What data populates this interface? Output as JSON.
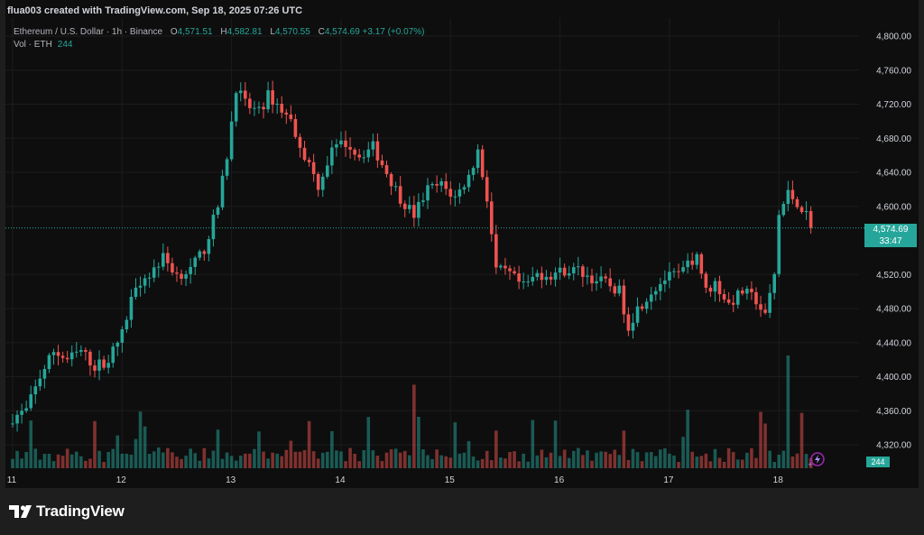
{
  "header": {
    "credit": "flua003 created with TradingView.com, Sep 18, 2025 07:26 UTC"
  },
  "legend": {
    "symbol": "Ethereum / U.S. Dollar · 1h · Binance",
    "open_label": "O",
    "open": "4,571.51",
    "high_label": "H",
    "high": "4,582.81",
    "low_label": "L",
    "low": "4,570.55",
    "close_label": "C",
    "close": "4,574.69",
    "change": "+3.17 (+0.07%)",
    "vol_label": "Vol · ETH",
    "vol": "244"
  },
  "price_tag": {
    "price": "4,574.69",
    "countdown": "33:47"
  },
  "volume_tag": "244",
  "brand": {
    "name": "TradingView"
  },
  "colors": {
    "background": "#0e0e0e",
    "up": "#26a69a",
    "down": "#ef5350",
    "grid": "#1c1c1c",
    "axis_text": "#d1d4dc"
  },
  "chart_data": {
    "type": "candlestick",
    "symbol": "ETH/USD",
    "interval": "1h",
    "exchange": "Binance",
    "y_ticks": [
      4320,
      4360,
      4400,
      4440,
      4480,
      4520,
      4600,
      4640,
      4680,
      4720,
      4760,
      4800
    ],
    "y_tick_labels": [
      "4,320.00",
      "4,360.00",
      "4,400.00",
      "4,440.00",
      "4,480.00",
      "4,520.00",
      "4,600.00",
      "4,640.00",
      "4,680.00",
      "4,720.00",
      "4,760.00",
      "4,800.00"
    ],
    "ylim": [
      4290,
      4820
    ],
    "x_labels": [
      "11",
      "12",
      "13",
      "14",
      "15",
      "16",
      "17",
      "18"
    ],
    "x_label_candle_index": [
      0,
      24,
      48,
      72,
      96,
      120,
      144,
      168
    ],
    "current_price": 4574.69,
    "grid": true,
    "volume_scale_max": 2700,
    "close_path": [
      [
        0,
        4352
      ],
      [
        3,
        4360
      ],
      [
        6,
        4400
      ],
      [
        9,
        4430
      ],
      [
        12,
        4420
      ],
      [
        15,
        4430
      ],
      [
        18,
        4412
      ],
      [
        21,
        4420
      ],
      [
        24,
        4450
      ],
      [
        27,
        4510
      ],
      [
        30,
        4520
      ],
      [
        33,
        4540
      ],
      [
        36,
        4520
      ],
      [
        39,
        4525
      ],
      [
        42,
        4550
      ],
      [
        45,
        4600
      ],
      [
        47,
        4660
      ],
      [
        49,
        4740
      ],
      [
        51,
        4720
      ],
      [
        54,
        4710
      ],
      [
        56,
        4730
      ],
      [
        58,
        4720
      ],
      [
        61,
        4700
      ],
      [
        64,
        4660
      ],
      [
        67,
        4625
      ],
      [
        70,
        4665
      ],
      [
        73,
        4675
      ],
      [
        76,
        4660
      ],
      [
        79,
        4670
      ],
      [
        82,
        4640
      ],
      [
        85,
        4610
      ],
      [
        88,
        4590
      ],
      [
        91,
        4620
      ],
      [
        94,
        4625
      ],
      [
        97,
        4610
      ],
      [
        100,
        4635
      ],
      [
        102,
        4665
      ],
      [
        104,
        4610
      ],
      [
        106,
        4525
      ],
      [
        109,
        4520
      ],
      [
        112,
        4505
      ],
      [
        115,
        4520
      ],
      [
        118,
        4520
      ],
      [
        121,
        4525
      ],
      [
        124,
        4525
      ],
      [
        127,
        4515
      ],
      [
        130,
        4510
      ],
      [
        133,
        4500
      ],
      [
        135,
        4460
      ],
      [
        137,
        4480
      ],
      [
        140,
        4500
      ],
      [
        143,
        4515
      ],
      [
        146,
        4520
      ],
      [
        148,
        4530
      ],
      [
        150,
        4545
      ],
      [
        152,
        4500
      ],
      [
        154,
        4510
      ],
      [
        157,
        4485
      ],
      [
        160,
        4500
      ],
      [
        163,
        4490
      ],
      [
        165,
        4470
      ],
      [
        167,
        4520
      ],
      [
        168,
        4590
      ],
      [
        170,
        4615
      ],
      [
        172,
        4605
      ],
      [
        174,
        4590
      ],
      [
        175,
        4575
      ]
    ],
    "candles": []
  }
}
